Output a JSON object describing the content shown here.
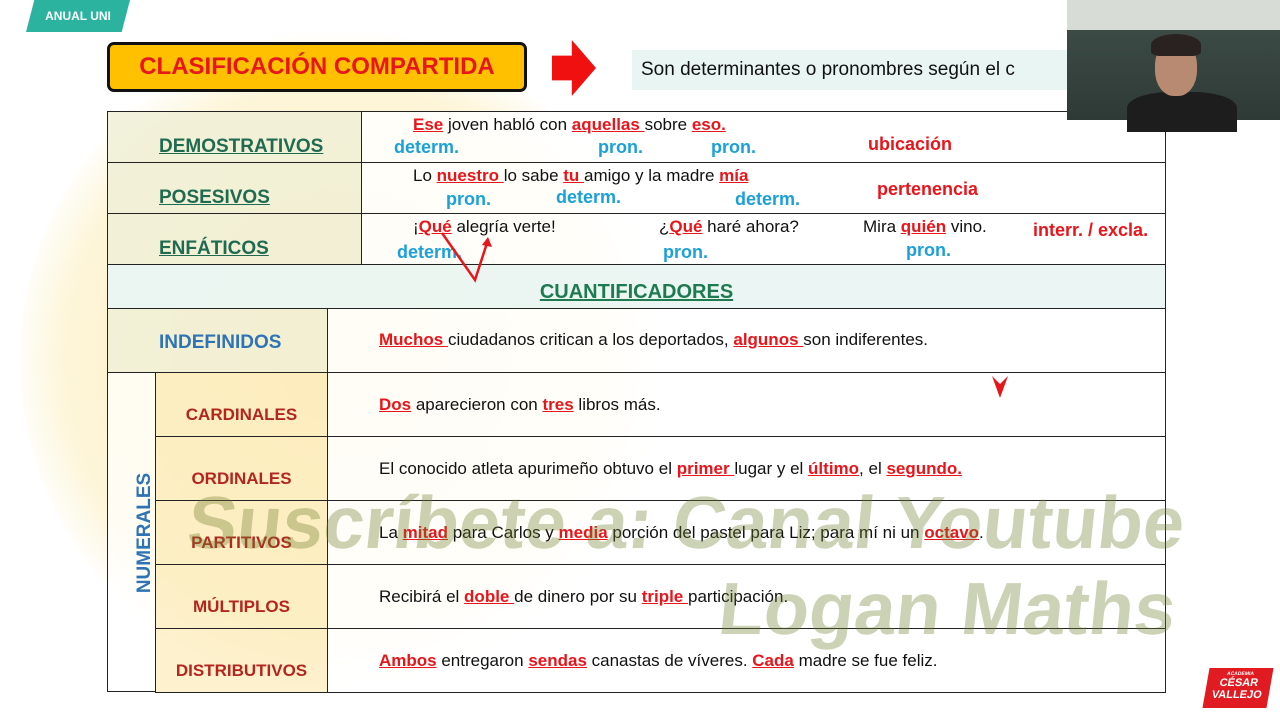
{
  "badge": "ANUAL UNI",
  "title": "CLASIFICACIÓN COMPARTIDA",
  "subtitle": "Son determinantes o pronombres según el c",
  "watermark": "Suscríbete a: Canal Youtube Logan Maths",
  "logo": {
    "top": "ACADEMIA",
    "line1": "CÉSAR",
    "line2": "VALLEJO"
  },
  "rows_top": [
    {
      "label": "DEMOSTRATIVOS",
      "sentence": [
        {
          "t": "Ese",
          "hl": true
        },
        {
          "t": " joven habló con "
        },
        {
          "t": "aquellas ",
          "hl": true
        },
        {
          "t": "sobre "
        },
        {
          "t": "eso.",
          "hl": true
        }
      ],
      "tags": [
        "determ.",
        "pron.",
        "pron."
      ],
      "note": "ubicación"
    },
    {
      "label": "POSESIVOS",
      "sentence": [
        {
          "t": "Lo "
        },
        {
          "t": "nuestro ",
          "hl": true
        },
        {
          "t": "lo sabe "
        },
        {
          "t": "tu ",
          "hl": true
        },
        {
          "t": "amigo y la madre "
        },
        {
          "t": "mía",
          "hl": true
        }
      ],
      "tags": [
        "pron.",
        "determ.",
        "determ."
      ],
      "note": "pertenencia"
    },
    {
      "label": "ENFÁTICOS",
      "sentences": [
        [
          {
            "t": "¡"
          },
          {
            "t": "Qué",
            "hl": true
          },
          {
            "t": " alegría verte!"
          }
        ],
        [
          {
            "t": "¿"
          },
          {
            "t": "Qué",
            "hl": true
          },
          {
            "t": " haré ahora?"
          }
        ],
        [
          {
            "t": "Mira "
          },
          {
            "t": "quién",
            "hl": true
          },
          {
            "t": " vino."
          }
        ]
      ],
      "tags": [
        "determ.",
        "pron.",
        "pron."
      ],
      "note": "interr. / excla."
    }
  ],
  "cuantificadores": "CUANTIFICADORES",
  "indefinidos": {
    "label": "INDEFINIDOS",
    "sentence": [
      {
        "t": "Muchos ",
        "hl": true
      },
      {
        "t": "ciudadanos critican a los deportados,  "
      },
      {
        "t": "algunos ",
        "hl": true
      },
      {
        "t": "son indiferentes."
      }
    ]
  },
  "numerales": {
    "label": "NUMERALES",
    "rows": [
      {
        "label": "CARDINALES",
        "sentence": [
          {
            "t": "Dos",
            "hl": true
          },
          {
            "t": " aparecieron con "
          },
          {
            "t": "tres",
            "hl": true
          },
          {
            "t": " libros más."
          }
        ]
      },
      {
        "label": "ORDINALES",
        "sentence": [
          {
            "t": "El conocido atleta apurimeño obtuvo el "
          },
          {
            "t": "primer ",
            "hl": true
          },
          {
            "t": "lugar y el "
          },
          {
            "t": "último",
            "hl": true
          },
          {
            "t": ", el "
          },
          {
            "t": "segundo.",
            "hl": true
          }
        ]
      },
      {
        "label": "PARTITIVOS",
        "sentence": [
          {
            "t": "La "
          },
          {
            "t": "mitad",
            "hl": true
          },
          {
            "t": " para Carlos y  "
          },
          {
            "t": "media",
            "hl": true
          },
          {
            "t": " porción del pastel para Liz; para mí ni un "
          },
          {
            "t": "octavo",
            "hl": true
          },
          {
            "t": "."
          }
        ]
      },
      {
        "label": "MÚLTIPLOS",
        "sentence": [
          {
            "t": "Recibirá el "
          },
          {
            "t": "doble ",
            "hl": true
          },
          {
            "t": "de dinero por su "
          },
          {
            "t": "triple ",
            "hl": true
          },
          {
            "t": "participación."
          }
        ]
      },
      {
        "label": "DISTRIBUTIVOS",
        "sentence": [
          {
            "t": "Ambos",
            "hl": true
          },
          {
            "t": "  entregaron "
          },
          {
            "t": "sendas",
            "hl": true
          },
          {
            "t": " canastas de víveres. "
          },
          {
            "t": "Cada",
            "hl": true
          },
          {
            "t": " madre se fue feliz."
          }
        ]
      }
    ]
  },
  "colors": {
    "accent_red": "#e8151b",
    "tag_blue": "#1ba1d8",
    "title_bg": "#ffc000",
    "label_green": "#1f6b52"
  }
}
